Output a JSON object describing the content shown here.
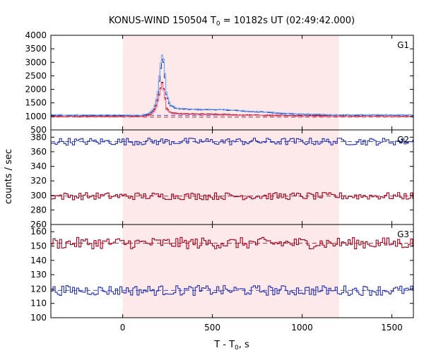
{
  "chart_data": {
    "type": "line",
    "title_main": "KONUS-WIND 150504 T",
    "title_sub": "0",
    "title_rest": " = 10182s UT (02:49:42.000)",
    "xlabel_main": "T - T",
    "xlabel_sub": "0",
    "xlabel_rest": ", s",
    "ylabel": "counts / sec",
    "xlim": [
      -400,
      1620
    ],
    "x_ticks": [
      0,
      500,
      1000,
      1500
    ],
    "shaded_interval": [
      0,
      1205
    ],
    "colors": {
      "blue": "#2330b0",
      "red": "#a00018",
      "lightblue": "#7ab0f0",
      "pink": "#f07898",
      "shade": "#fde8ea"
    },
    "panels": [
      {
        "label": "G1",
        "ylim": [
          500,
          4000
        ],
        "y_ticks": [
          500,
          1000,
          1500,
          2000,
          2500,
          3000,
          3500,
          4000
        ],
        "series": [
          {
            "color": "blue",
            "points": [
              [
                -400,
                1040
              ],
              [
                100,
                1030
              ],
              [
                140,
                1080
              ],
              [
                170,
                1250
              ],
              [
                190,
                1700
              ],
              [
                200,
                2300
              ],
              [
                210,
                2900
              ],
              [
                220,
                3250
              ],
              [
                230,
                2600
              ],
              [
                240,
                1800
              ],
              [
                260,
                1400
              ],
              [
                300,
                1280
              ],
              [
                400,
                1250
              ],
              [
                500,
                1250
              ],
              [
                600,
                1230
              ],
              [
                700,
                1180
              ],
              [
                800,
                1150
              ],
              [
                900,
                1100
              ],
              [
                1000,
                1080
              ],
              [
                1200,
                1050
              ],
              [
                1620,
                1050
              ]
            ]
          },
          {
            "color": "lightblue",
            "points": [
              [
                -400,
                1060
              ],
              [
                100,
                1050
              ],
              [
                140,
                1100
              ],
              [
                170,
                1280
              ],
              [
                190,
                1800
              ],
              [
                200,
                2500
              ],
              [
                210,
                3100
              ],
              [
                220,
                3380
              ],
              [
                230,
                2750
              ],
              [
                240,
                1900
              ],
              [
                260,
                1450
              ],
              [
                300,
                1300
              ],
              [
                400,
                1270
              ],
              [
                500,
                1270
              ],
              [
                600,
                1250
              ],
              [
                700,
                1200
              ],
              [
                800,
                1170
              ],
              [
                900,
                1120
              ],
              [
                1000,
                1090
              ],
              [
                1200,
                1060
              ],
              [
                1620,
                1060
              ]
            ]
          },
          {
            "color": "red",
            "points": [
              [
                -400,
                1000
              ],
              [
                100,
                1000
              ],
              [
                150,
                1050
              ],
              [
                180,
                1300
              ],
              [
                200,
                1800
              ],
              [
                215,
                2300
              ],
              [
                225,
                2000
              ],
              [
                240,
                1300
              ],
              [
                260,
                1150
              ],
              [
                300,
                1100
              ],
              [
                500,
                1080
              ],
              [
                700,
                1050
              ],
              [
                1000,
                1020
              ],
              [
                1620,
                1000
              ]
            ]
          },
          {
            "color": "pink",
            "points": [
              [
                -400,
                980
              ],
              [
                100,
                985
              ],
              [
                150,
                1030
              ],
              [
                180,
                1250
              ],
              [
                200,
                1750
              ],
              [
                215,
                2250
              ],
              [
                225,
                1950
              ],
              [
                240,
                1250
              ],
              [
                260,
                1120
              ],
              [
                300,
                1080
              ],
              [
                500,
                1060
              ],
              [
                700,
                1030
              ],
              [
                1000,
                1000
              ],
              [
                1620,
                985
              ]
            ]
          }
        ],
        "background_levels": [
          {
            "color": "blue",
            "y": 1040
          },
          {
            "color": "red",
            "y": 975
          }
        ]
      },
      {
        "label": "G2",
        "ylim": [
          260,
          390
        ],
        "y_ticks": [
          260,
          280,
          300,
          320,
          340,
          360,
          380
        ],
        "series": [
          {
            "color": "blue",
            "mean": 374,
            "amp": 5
          },
          {
            "color": "red",
            "mean": 299,
            "amp": 5
          }
        ],
        "background_levels": [
          {
            "color": "blue",
            "y": 374
          },
          {
            "color": "red",
            "y": 299
          }
        ]
      },
      {
        "label": "G3",
        "ylim": [
          100,
          165
        ],
        "y_ticks": [
          100,
          110,
          120,
          130,
          140,
          150,
          160
        ],
        "series": [
          {
            "color": "red",
            "mean": 152,
            "amp": 4
          },
          {
            "color": "blue",
            "mean": 119,
            "amp": 3.5
          }
        ],
        "background_levels": [
          {
            "color": "red",
            "y": 152
          },
          {
            "color": "blue",
            "y": 119
          }
        ]
      }
    ]
  }
}
